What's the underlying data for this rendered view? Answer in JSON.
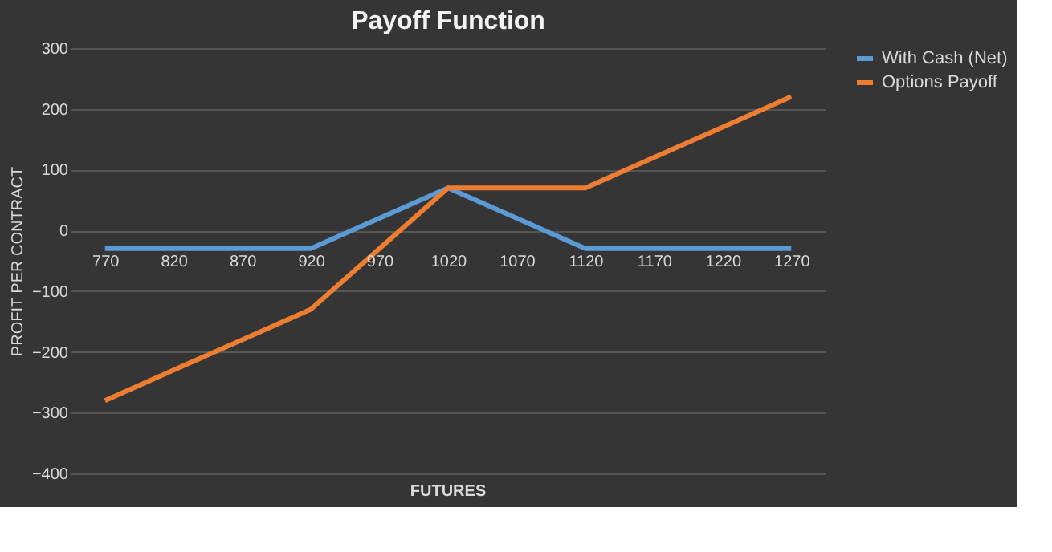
{
  "chart_data": {
    "type": "line",
    "title": "Payoff Function",
    "xlabel": "FUTURES",
    "ylabel": "PROFIT PER CONTRACT",
    "categories": [
      "770",
      "820",
      "870",
      "920",
      "970",
      "1020",
      "1070",
      "1120",
      "1170",
      "1220",
      "1270"
    ],
    "series": [
      {
        "name": "With Cash (Net)",
        "color": "#5b9bd5",
        "values": [
          -30,
          -30,
          -30,
          -30,
          20,
          70,
          20,
          -30,
          -30,
          -30,
          -30
        ]
      },
      {
        "name": "Options Payoff",
        "color": "#ed7d31",
        "values": [
          -280,
          -230,
          -180,
          -130,
          -30,
          70,
          70,
          70,
          120,
          170,
          220
        ]
      }
    ],
    "ylim": [
      -400,
      300
    ],
    "yticks": [
      -400,
      -300,
      -200,
      -100,
      0,
      100,
      200,
      300
    ],
    "grid": "y",
    "legend": "right",
    "marker": "none",
    "line_style": "solid"
  }
}
